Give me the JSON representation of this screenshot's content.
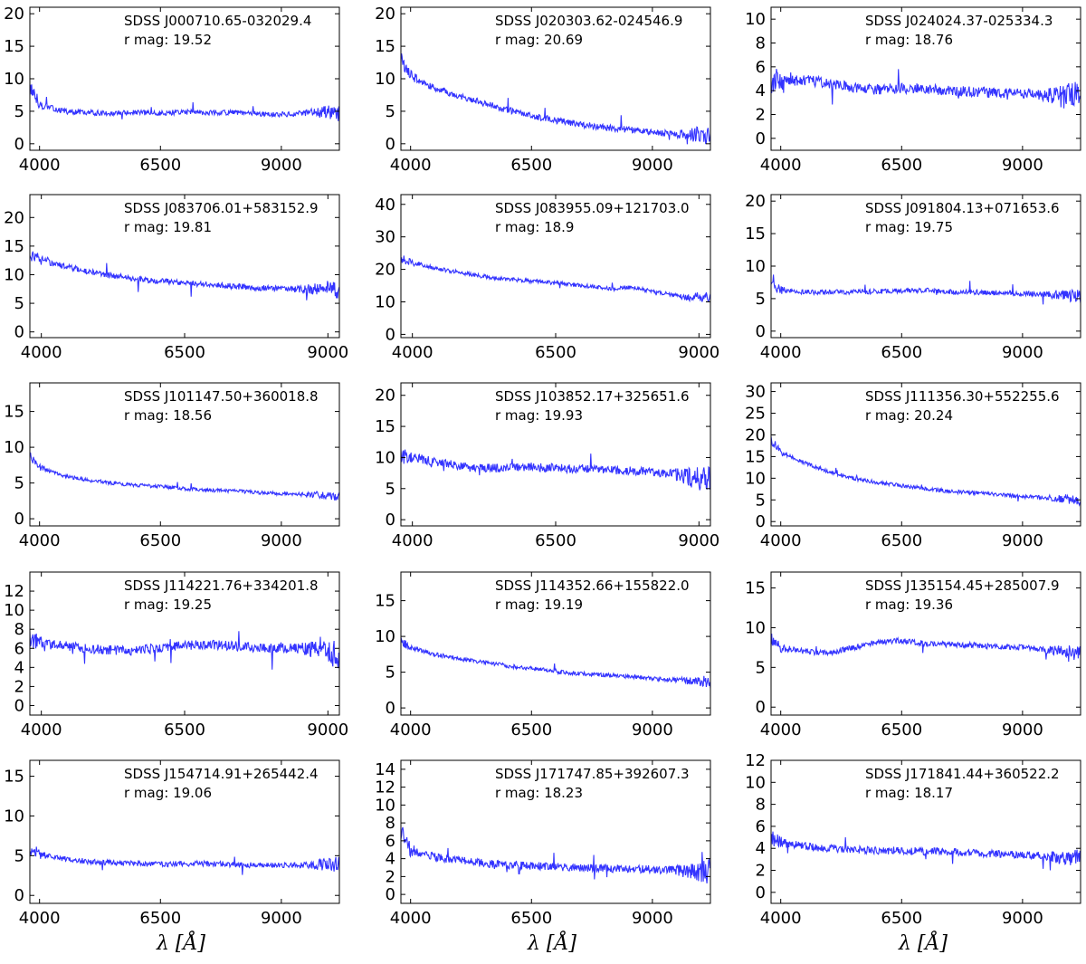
{
  "chart_data": [
    {
      "type": "line",
      "title": "SDSS J000710.65-032029.4",
      "annotation": "r mag: 19.52",
      "xlim": [
        3800,
        10200
      ],
      "ylim": [
        -1,
        21
      ],
      "xticks": [
        4000,
        6500,
        9000
      ],
      "yticks": [
        0,
        5,
        10,
        15,
        20
      ],
      "x": [
        3800,
        4000,
        4500,
        5000,
        5500,
        6000,
        6500,
        7000,
        7500,
        8000,
        8500,
        9000,
        9500,
        10000,
        10200
      ],
      "y": [
        8.8,
        6.0,
        5.0,
        4.8,
        4.7,
        4.8,
        4.7,
        4.9,
        4.8,
        4.8,
        4.6,
        4.5,
        4.7,
        4.9,
        4.6
      ],
      "noise": 0.4
    },
    {
      "type": "line",
      "title": "SDSS J020303.62-024546.9",
      "annotation": "r mag: 20.69",
      "xlim": [
        3800,
        10200
      ],
      "ylim": [
        -1,
        21
      ],
      "xticks": [
        4000,
        6500,
        9000
      ],
      "yticks": [
        0,
        5,
        10,
        15,
        20
      ],
      "x": [
        3800,
        4000,
        4500,
        5000,
        5500,
        6000,
        6500,
        7000,
        7500,
        8000,
        8500,
        9000,
        9500,
        10000,
        10200
      ],
      "y": [
        13,
        10.5,
        8.5,
        7.4,
        6.3,
        5.2,
        4.3,
        3.6,
        3.0,
        2.5,
        2.2,
        1.8,
        1.5,
        1.4,
        1.2
      ],
      "noise": 0.5
    },
    {
      "type": "line",
      "title": "SDSS J024024.37-025334.3",
      "annotation": "r mag: 18.76",
      "xlim": [
        3800,
        10200
      ],
      "ylim": [
        -1,
        11
      ],
      "xticks": [
        4000,
        6500,
        9000
      ],
      "yticks": [
        0,
        2,
        4,
        6,
        8,
        10
      ],
      "x": [
        3800,
        4000,
        4500,
        5000,
        5500,
        6000,
        6500,
        7000,
        7500,
        8000,
        8500,
        9000,
        9500,
        10000,
        10200
      ],
      "y": [
        4.6,
        4.8,
        4.9,
        4.6,
        4.3,
        4.1,
        4.2,
        4.2,
        4.0,
        3.9,
        3.8,
        3.8,
        3.6,
        3.5,
        3.4
      ],
      "noise": 0.45
    },
    {
      "type": "line",
      "title": "SDSS J083706.01+583152.9",
      "annotation": "r mag: 19.81",
      "xlim": [
        3800,
        9200
      ],
      "ylim": [
        -1,
        24
      ],
      "xticks": [
        4000,
        6500,
        9000
      ],
      "yticks": [
        0,
        5,
        10,
        15,
        20
      ],
      "x": [
        3800,
        4000,
        4500,
        5000,
        5500,
        6000,
        6500,
        7000,
        7500,
        8000,
        8500,
        9000,
        9200
      ],
      "y": [
        13.5,
        12.5,
        11.3,
        10.2,
        9.5,
        8.9,
        8.6,
        8.2,
        7.9,
        7.6,
        7.4,
        7.6,
        7.2
      ],
      "noise": 0.5
    },
    {
      "type": "line",
      "title": "SDSS J083955.09+121703.0",
      "annotation": "r mag: 18.9",
      "xlim": [
        3800,
        9200
      ],
      "ylim": [
        -1,
        43
      ],
      "xticks": [
        4000,
        6500,
        9000
      ],
      "yticks": [
        0,
        10,
        20,
        30,
        40
      ],
      "x": [
        3800,
        4000,
        4500,
        5000,
        5500,
        6000,
        6500,
        7000,
        7500,
        7800,
        8500,
        8800,
        9000,
        9200
      ],
      "y": [
        23.5,
        22,
        20,
        18.5,
        17.2,
        16.5,
        15.8,
        15,
        14,
        14.5,
        12.2,
        11.5,
        11.8,
        11.5
      ],
      "noise": 0.6
    },
    {
      "type": "line",
      "title": "SDSS J091804.13+071653.6",
      "annotation": "r mag: 19.75",
      "xlim": [
        3800,
        10200
      ],
      "ylim": [
        -1,
        21
      ],
      "xticks": [
        4000,
        6500,
        9000
      ],
      "yticks": [
        0,
        5,
        10,
        15,
        20
      ],
      "x": [
        3800,
        4000,
        4500,
        5000,
        5500,
        6000,
        6500,
        7000,
        7500,
        8000,
        8500,
        9000,
        9500,
        10000,
        10200
      ],
      "y": [
        7.0,
        6.4,
        6.0,
        6.0,
        6.0,
        6.1,
        6.2,
        6.3,
        6.0,
        6.0,
        5.9,
        5.8,
        5.6,
        5.5,
        5.2
      ],
      "noise": 0.4
    },
    {
      "type": "line",
      "title": "SDSS J101147.50+360018.8",
      "annotation": "r mag: 18.56",
      "xlim": [
        3800,
        10200
      ],
      "ylim": [
        -1,
        19
      ],
      "xticks": [
        4000,
        6500,
        9000
      ],
      "yticks": [
        0,
        5,
        10,
        15
      ],
      "x": [
        3800,
        4000,
        4500,
        5000,
        5500,
        6000,
        6500,
        7000,
        7500,
        8000,
        8500,
        9000,
        9500,
        10000,
        10200
      ],
      "y": [
        8.8,
        7.2,
        6.0,
        5.4,
        5.0,
        4.7,
        4.5,
        4.2,
        4.0,
        3.9,
        3.7,
        3.5,
        3.4,
        3.3,
        3.3
      ],
      "noise": 0.25
    },
    {
      "type": "line",
      "title": "SDSS J103852.17+325651.6",
      "annotation": "r mag: 19.93",
      "xlim": [
        3800,
        9200
      ],
      "ylim": [
        -1,
        22
      ],
      "xticks": [
        4000,
        6500,
        9000
      ],
      "yticks": [
        0,
        5,
        10,
        15,
        20
      ],
      "x": [
        3800,
        4000,
        4500,
        5000,
        5500,
        6000,
        6500,
        7000,
        7500,
        8000,
        8500,
        9000,
        9200
      ],
      "y": [
        10.5,
        10.0,
        9.2,
        8.4,
        8.3,
        8.5,
        8.3,
        8.2,
        8.0,
        7.8,
        7.3,
        6.6,
        6.4
      ],
      "noise": 0.7
    },
    {
      "type": "line",
      "title": "SDSS J111356.30+552255.6",
      "annotation": "r mag: 20.24",
      "xlim": [
        3800,
        10200
      ],
      "ylim": [
        -1,
        32
      ],
      "xticks": [
        4000,
        6500,
        9000
      ],
      "yticks": [
        0,
        5,
        10,
        15,
        20,
        25,
        30
      ],
      "x": [
        3800,
        4000,
        4500,
        5000,
        5500,
        6000,
        6500,
        7000,
        7500,
        8000,
        8500,
        9000,
        9500,
        10000,
        10200
      ],
      "y": [
        19,
        16,
        13.5,
        11.5,
        10,
        9,
        8.3,
        7.6,
        7.0,
        6.6,
        6.2,
        5.8,
        5.5,
        5.2,
        5.0
      ],
      "noise": 0.45
    },
    {
      "type": "line",
      "title": "SDSS J114221.76+334201.8",
      "annotation": "r mag: 19.25",
      "xlim": [
        3800,
        9200
      ],
      "ylim": [
        -1,
        14
      ],
      "xticks": [
        4000,
        6500,
        9000
      ],
      "yticks": [
        0,
        2,
        4,
        6,
        8,
        10,
        12
      ],
      "x": [
        3800,
        4000,
        4500,
        5000,
        5500,
        6000,
        6500,
        7000,
        7500,
        8000,
        8500,
        9000,
        9200
      ],
      "y": [
        6.6,
        6.5,
        6.2,
        5.9,
        5.7,
        6.0,
        6.3,
        6.4,
        6.2,
        6.0,
        6.0,
        5.6,
        5.2
      ],
      "noise": 0.5
    },
    {
      "type": "line",
      "title": "SDSS J114352.66+155822.0",
      "annotation": "r mag: 19.19",
      "xlim": [
        3800,
        10200
      ],
      "ylim": [
        -1,
        19
      ],
      "xticks": [
        4000,
        6500,
        9000
      ],
      "yticks": [
        0,
        5,
        10,
        15
      ],
      "x": [
        3800,
        4000,
        4500,
        5000,
        5500,
        6000,
        6500,
        7000,
        7500,
        8000,
        8500,
        9000,
        9500,
        10000,
        10200
      ],
      "y": [
        9.2,
        8.4,
        7.5,
        6.9,
        6.4,
        5.9,
        5.5,
        5.1,
        4.8,
        4.6,
        4.4,
        4.1,
        3.9,
        3.8,
        3.6
      ],
      "noise": 0.3
    },
    {
      "type": "line",
      "title": "SDSS J135154.45+285007.9",
      "annotation": "r mag: 19.36",
      "xlim": [
        3800,
        10200
      ],
      "ylim": [
        -1,
        17
      ],
      "xticks": [
        4000,
        6500,
        9000
      ],
      "yticks": [
        0,
        5,
        10,
        15
      ],
      "x": [
        3800,
        4000,
        4500,
        5000,
        5500,
        6000,
        6500,
        7000,
        7500,
        8000,
        8500,
        9000,
        9500,
        10000,
        10200
      ],
      "y": [
        8.5,
        7.5,
        7.0,
        6.8,
        7.5,
        8.2,
        8.4,
        8.0,
        7.9,
        7.8,
        7.6,
        7.5,
        7.2,
        7.0,
        6.6
      ],
      "noise": 0.35
    },
    {
      "type": "line",
      "title": "SDSS J154714.91+265442.4",
      "annotation": "r mag: 19.06",
      "xlim": [
        3800,
        10200
      ],
      "ylim": [
        -1,
        17
      ],
      "xticks": [
        4000,
        6500,
        9000
      ],
      "yticks": [
        0,
        5,
        10,
        15
      ],
      "x": [
        3800,
        4000,
        4500,
        5000,
        5500,
        6000,
        6500,
        7000,
        7500,
        8000,
        8500,
        9000,
        9500,
        10000,
        10200
      ],
      "y": [
        6.0,
        5.2,
        4.6,
        4.3,
        4.1,
        4.0,
        3.9,
        4.0,
        4.0,
        3.9,
        3.8,
        3.8,
        3.8,
        3.9,
        4.1
      ],
      "noise": 0.35
    },
    {
      "type": "line",
      "title": "SDSS J171747.85+392607.3",
      "annotation": "r mag: 18.23",
      "xlim": [
        3800,
        10200
      ],
      "ylim": [
        -1,
        15
      ],
      "xticks": [
        4000,
        6500,
        9000
      ],
      "yticks": [
        0,
        2,
        4,
        6,
        8,
        10,
        12,
        14
      ],
      "x": [
        3800,
        4000,
        4500,
        5000,
        5500,
        6000,
        6500,
        7000,
        7500,
        8000,
        8500,
        9000,
        9500,
        10000,
        10200
      ],
      "y": [
        7.0,
        5.0,
        4.2,
        3.8,
        3.5,
        3.3,
        3.2,
        3.1,
        3.0,
        2.9,
        2.9,
        2.8,
        2.7,
        2.6,
        2.5
      ],
      "noise": 0.45
    },
    {
      "type": "line",
      "title": "SDSS J171841.44+360522.2",
      "annotation": "r mag: 18.17",
      "xlim": [
        3800,
        10200
      ],
      "ylim": [
        -1,
        12
      ],
      "xticks": [
        4000,
        6500,
        9000
      ],
      "yticks": [
        0,
        2,
        4,
        6,
        8,
        10,
        12
      ],
      "x": [
        3800,
        4000,
        4500,
        5000,
        5500,
        6000,
        6500,
        7000,
        7500,
        8000,
        8500,
        9000,
        9500,
        10000,
        10200
      ],
      "y": [
        5.2,
        4.6,
        4.2,
        4.0,
        3.9,
        3.8,
        3.8,
        3.7,
        3.7,
        3.6,
        3.5,
        3.4,
        3.3,
        3.2,
        3.0
      ],
      "noise": 0.35
    }
  ],
  "xlabel": "λ [Å]",
  "line_color": "#3333ff"
}
